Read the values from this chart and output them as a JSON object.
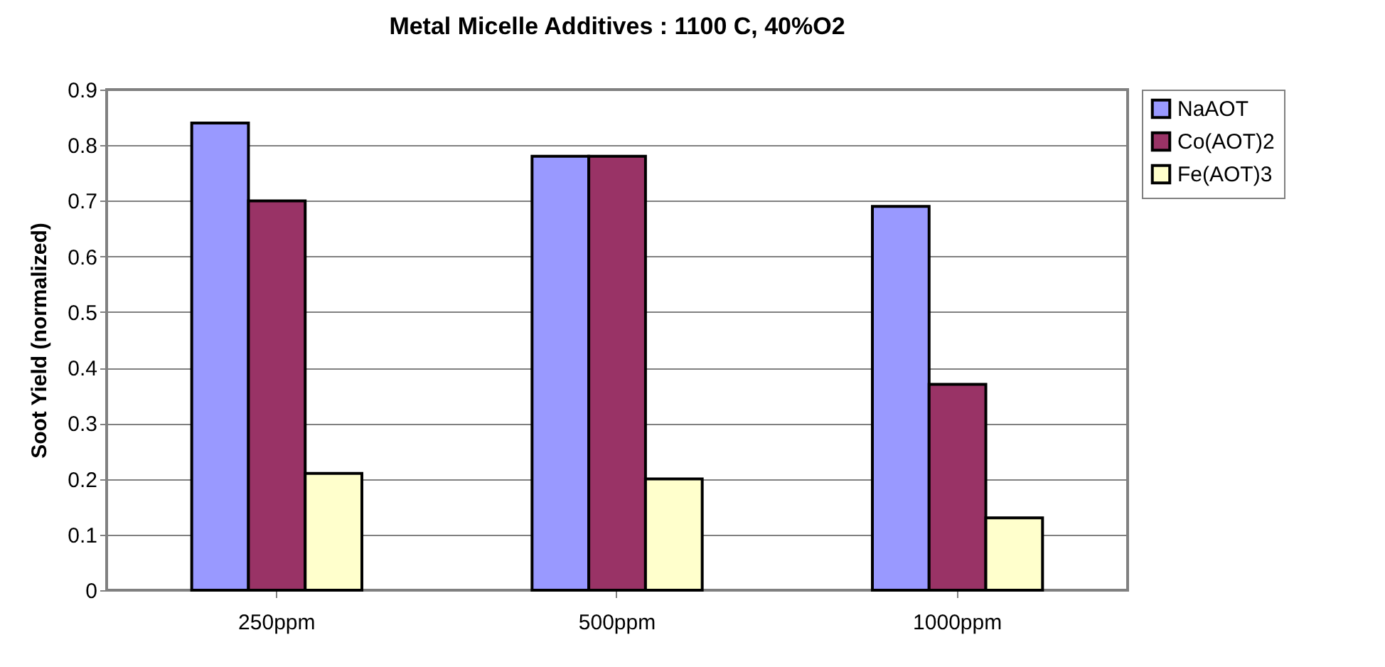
{
  "chart_data": {
    "type": "bar",
    "title": "Metal Micelle Additives : 1100 C, 40%O2",
    "ylabel": "Soot Yield (normalized)",
    "categories": [
      "250ppm",
      "500ppm",
      "1000ppm"
    ],
    "series": [
      {
        "name": "NaAOT",
        "color": "#9999ff",
        "values": [
          0.84,
          0.78,
          0.69
        ]
      },
      {
        "name": "Co(AOT)2",
        "color": "#993366",
        "values": [
          0.7,
          0.78,
          0.37
        ]
      },
      {
        "name": "Fe(AOT)3",
        "color": "#ffffcc",
        "values": [
          0.21,
          0.2,
          0.13
        ]
      }
    ],
    "ylim": [
      0,
      0.9
    ],
    "yticks": [
      0,
      0.1,
      0.2,
      0.3,
      0.4,
      0.5,
      0.6,
      0.7,
      0.8,
      0.9
    ],
    "grid": "y",
    "legend": "right"
  }
}
